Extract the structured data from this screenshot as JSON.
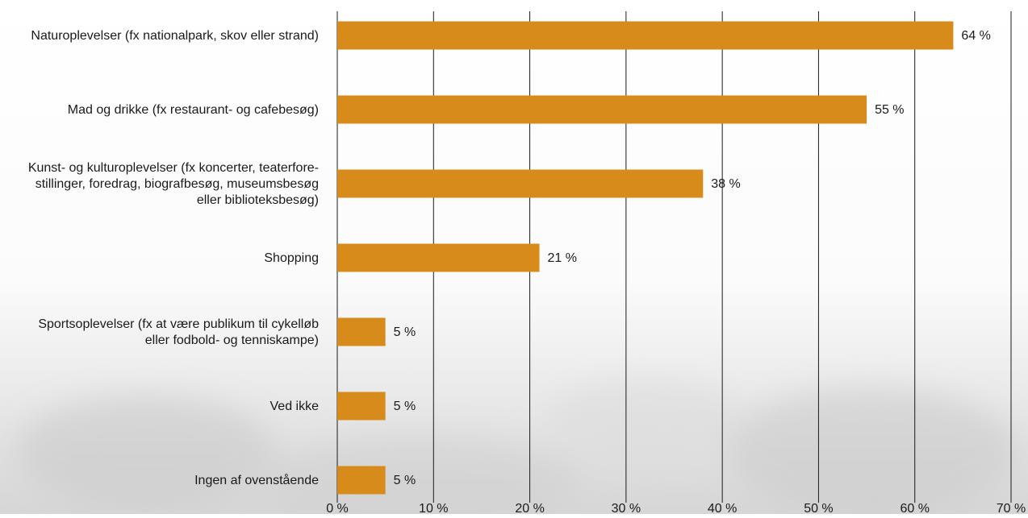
{
  "chart_data": {
    "type": "bar",
    "orientation": "horizontal",
    "categories": [
      "Naturoplevelser (fx nationalpark, skov eller strand)",
      "Mad og drikke (fx restaurant- og cafebesøg)",
      "Kunst- og kulturoplevelser (fx koncerter, teaterfore-\nstillinger, foredrag, biografbesøg, museumsbesøg\neller biblioteksbesøg)",
      "Shopping",
      "Sportsoplevelser (fx at være publikum til cykelløb\neller fodbold- og tenniskampe)",
      "Ved ikke",
      "Ingen af ovenstående"
    ],
    "values": [
      64,
      55,
      38,
      21,
      5,
      5,
      5
    ],
    "value_labels": [
      "64 %",
      "55 %",
      "38 %",
      "21 %",
      "5 %",
      "5 %",
      "5 %"
    ],
    "x_ticks": [
      0,
      10,
      20,
      30,
      40,
      50,
      60,
      70
    ],
    "x_tick_labels": [
      "0 %",
      "10 %",
      "20 %",
      "30 %",
      "40 %",
      "50 %",
      "60 %",
      "70 %"
    ],
    "xlim": [
      0,
      70
    ],
    "title": "",
    "xlabel": "",
    "ylabel": "",
    "grid": "vertical",
    "legend": "none",
    "bar_color": "#d78b1a",
    "grid_color": "#1a1a1a",
    "text_color": "#1a1a1a"
  }
}
